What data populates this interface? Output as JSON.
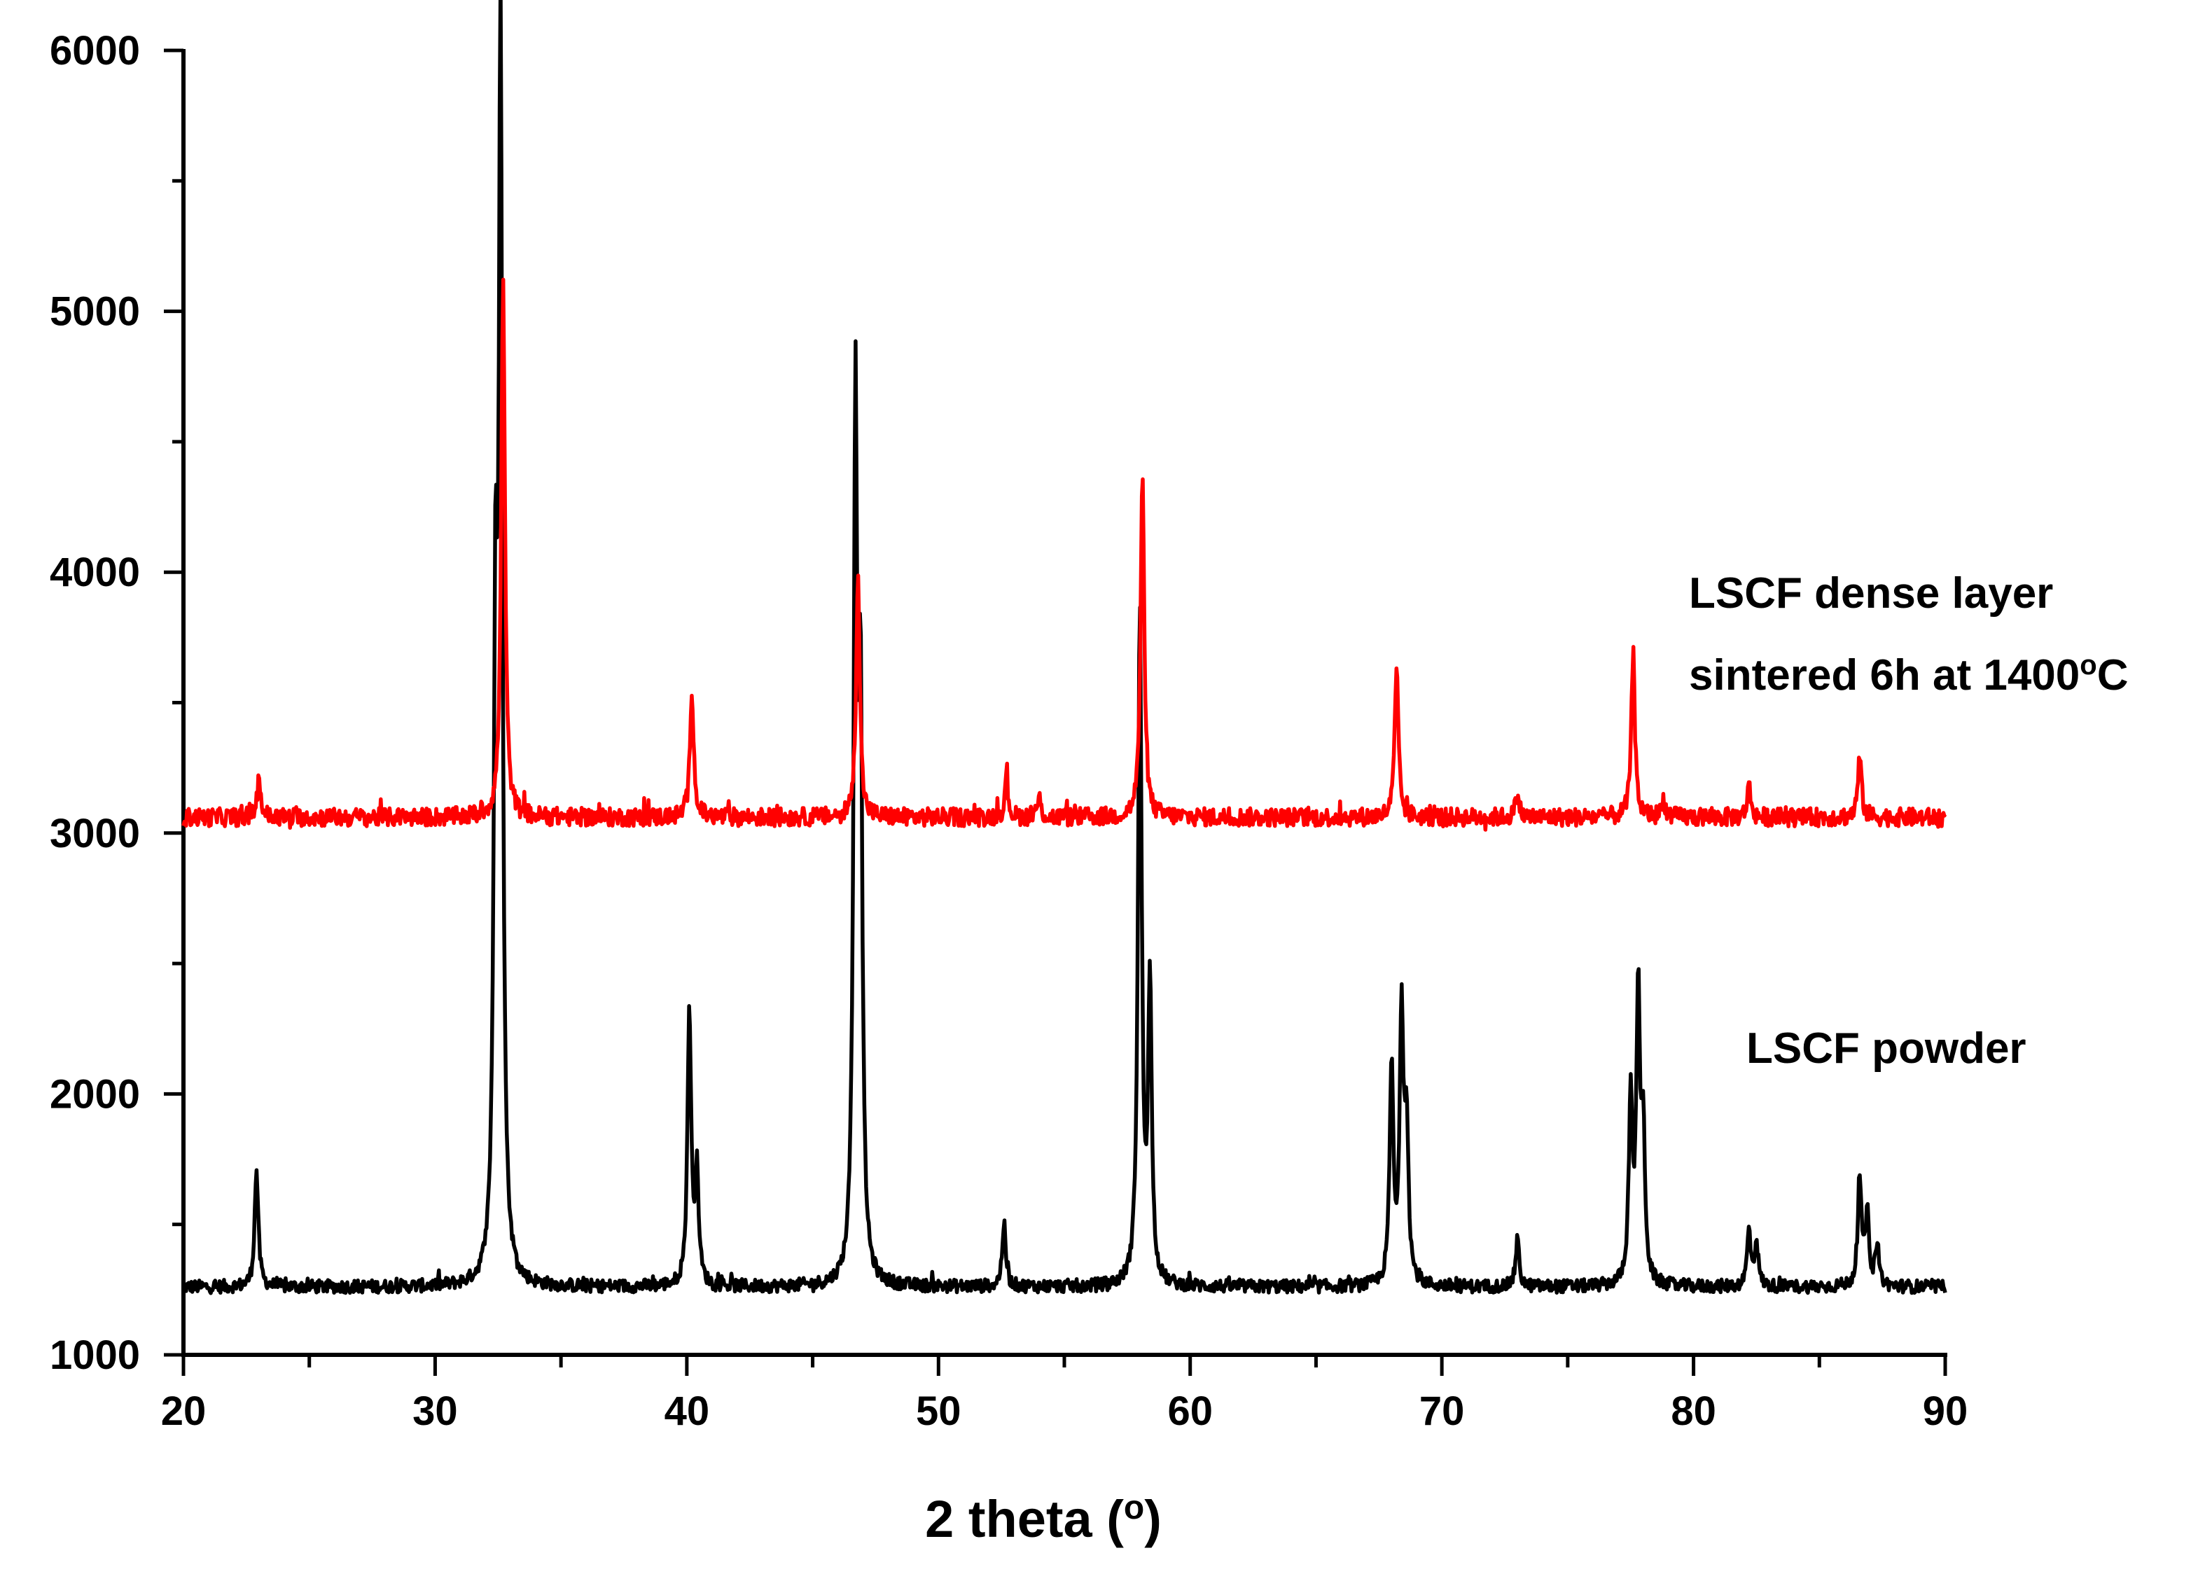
{
  "chart_data": {
    "type": "line",
    "title": "",
    "xlabel": "2 theta (o)",
    "xlabel_parts": [
      "2 theta (",
      "o",
      ")"
    ],
    "ylabel": "",
    "xlim": [
      20,
      90
    ],
    "ylim": [
      1000,
      6000
    ],
    "x_ticks": [
      "20",
      "30",
      "40",
      "50",
      "60",
      "70",
      "80",
      "90"
    ],
    "y_ticks": [
      "1000",
      "2000",
      "3000",
      "4000",
      "5000",
      "6000"
    ],
    "grid": false,
    "series": [
      {
        "name": "LSCF powder",
        "color": "#000000",
        "baseline": 1260,
        "noise": 25,
        "x_range": [
          20,
          90
        ],
        "peaks": [
          {
            "x": 22.9,
            "y": 1710
          },
          {
            "x": 32.4,
            "y": 3600
          },
          {
            "x": 32.6,
            "y": 5920
          },
          {
            "x": 40.1,
            "y": 2320
          },
          {
            "x": 40.4,
            "y": 1680
          },
          {
            "x": 46.7,
            "y": 4530
          },
          {
            "x": 46.9,
            "y": 3350
          },
          {
            "x": 52.6,
            "y": 1500
          },
          {
            "x": 58.0,
            "y": 3830
          },
          {
            "x": 58.4,
            "y": 2400
          },
          {
            "x": 68.0,
            "y": 2100
          },
          {
            "x": 68.4,
            "y": 2300
          },
          {
            "x": 68.6,
            "y": 1850
          },
          {
            "x": 73.0,
            "y": 1440
          },
          {
            "x": 77.5,
            "y": 1950
          },
          {
            "x": 77.8,
            "y": 2370
          },
          {
            "x": 78.0,
            "y": 1800
          },
          {
            "x": 82.2,
            "y": 1470
          },
          {
            "x": 82.5,
            "y": 1430
          },
          {
            "x": 86.6,
            "y": 1680
          },
          {
            "x": 86.9,
            "y": 1530
          },
          {
            "x": 87.3,
            "y": 1420
          }
        ]
      },
      {
        "name": "LSCF dense layer sintered 6h at 1400oC",
        "color": "#ff0000",
        "baseline": 3060,
        "noise": 35,
        "x_range": [
          20,
          90
        ],
        "peaks": [
          {
            "x": 23.0,
            "y": 3210
          },
          {
            "x": 32.7,
            "y": 5130
          },
          {
            "x": 40.2,
            "y": 3560
          },
          {
            "x": 46.8,
            "y": 4010
          },
          {
            "x": 52.7,
            "y": 3200
          },
          {
            "x": 54.0,
            "y": 3130
          },
          {
            "x": 58.1,
            "y": 4360
          },
          {
            "x": 68.2,
            "y": 3630
          },
          {
            "x": 73.0,
            "y": 3150
          },
          {
            "x": 77.6,
            "y": 3690
          },
          {
            "x": 78.8,
            "y": 3130
          },
          {
            "x": 82.2,
            "y": 3180
          },
          {
            "x": 86.6,
            "y": 3290
          }
        ]
      }
    ],
    "annotations": [
      {
        "series": "LSCF dense layer",
        "line1": "LSCF dense layer",
        "line2_pre": "sintered 6h at 1400",
        "line2_sup": "o",
        "line2_post": "C"
      },
      {
        "series": "LSCF powder",
        "text": "LSCF powder"
      }
    ]
  }
}
